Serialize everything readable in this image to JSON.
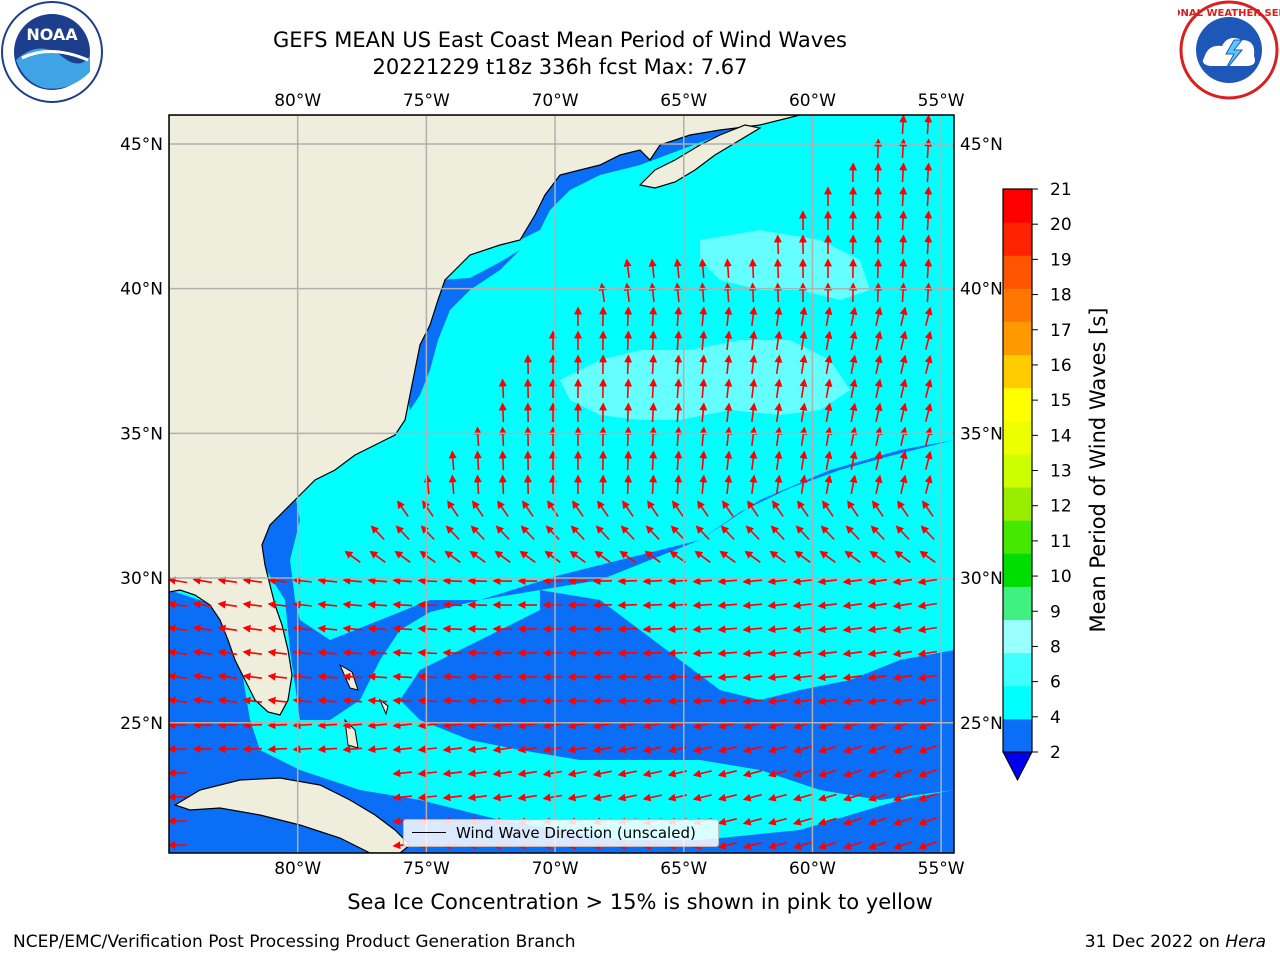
{
  "header": {
    "title_line1": "GEFS MEAN US East Coast Mean Period of Wind Waves",
    "title_line2": "20221229 t18z 336h fcst   Max: 7.67"
  },
  "logos": {
    "left": {
      "icon": "noaa-logo-icon",
      "text": "NOAA"
    },
    "right": {
      "icon": "nws-logo-icon",
      "text": "NATIONAL WEATHER SERVICE"
    }
  },
  "map": {
    "lon_labels": [
      "80°W",
      "75°W",
      "70°W",
      "65°W",
      "60°W",
      "55°W"
    ],
    "lat_labels": [
      "45°N",
      "40°N",
      "35°N",
      "30°N",
      "25°N"
    ],
    "lon_values": [
      -80,
      -75,
      -70,
      -65,
      -60,
      -55
    ],
    "lat_values": [
      45,
      40,
      35,
      30,
      25
    ],
    "lon_range": [
      -85,
      -54.5
    ],
    "lat_range": [
      20.5,
      46
    ],
    "land_color": "#efeddc",
    "grid_color": "#b0b0b0",
    "arrow_color": "#ff0000",
    "legend_label": "Wind Wave Direction (unscaled)"
  },
  "colorbar": {
    "label": "Mean Period of Wind Waves [s]",
    "ticks": [
      "2",
      "4",
      "6",
      "8",
      "9",
      "10",
      "11",
      "12",
      "13",
      "14",
      "15",
      "16",
      "17",
      "18",
      "19",
      "20",
      "21"
    ],
    "colors": [
      "#0a6ef7",
      "#00ffff",
      "#40ffff",
      "#99ffff",
      "#40f080",
      "#00dd00",
      "#44e800",
      "#99ee00",
      "#ccff00",
      "#eeff00",
      "#ffff00",
      "#ffcc00",
      "#ff9900",
      "#ff7700",
      "#ff5500",
      "#ff2200",
      "#ff0000"
    ],
    "extend_color": "#0000ee"
  },
  "notes": {
    "sea_ice": "Sea Ice Concentration > 15% is shown in pink to yellow"
  },
  "footer": {
    "left": "NCEP/EMC/Verification Post Processing Product Generation Branch",
    "right_prefix": "31 Dec 2022 on",
    "right_host": "Hera"
  }
}
